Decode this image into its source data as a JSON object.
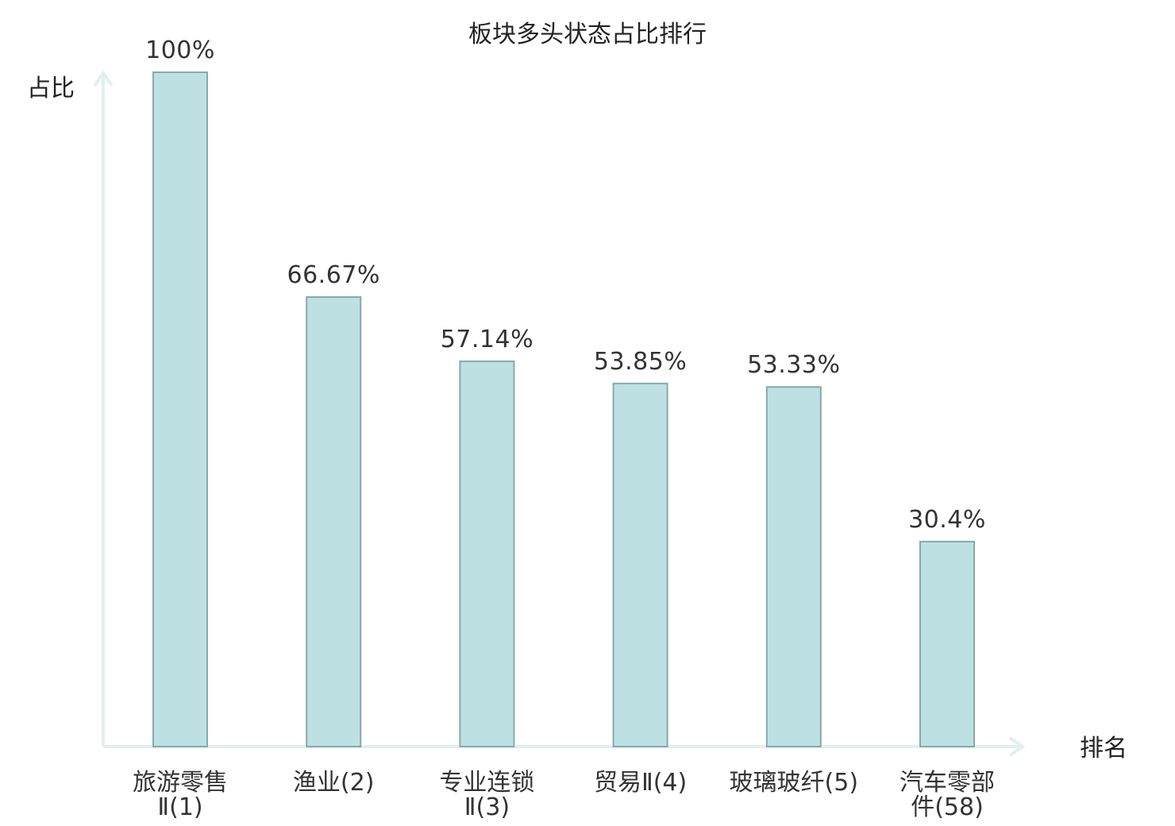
{
  "chart_data": {
    "type": "bar",
    "title": "板块多头状态占比排行",
    "xlabel": "排名",
    "ylabel": "占比",
    "ylim": [
      0,
      100
    ],
    "grid": false,
    "categories": [
      [
        "旅游零售",
        "Ⅱ(1)"
      ],
      [
        "渔业(2)"
      ],
      [
        "专业连锁",
        "Ⅱ(3)"
      ],
      [
        "贸易Ⅱ(4)"
      ],
      [
        "玻璃玻纤(5)"
      ],
      [
        "汽车零部",
        "件(58)"
      ]
    ],
    "values": [
      100,
      66.67,
      57.14,
      53.85,
      53.33,
      30.4
    ],
    "value_labels": [
      "100%",
      "66.67%",
      "57.14%",
      "53.85%",
      "53.33%",
      "30.4%"
    ],
    "highlight_index": 5,
    "colors": {
      "bar_fill": "#bde0e3",
      "bar_stroke": "#8aa9ab",
      "axis": "#dff0ee",
      "text": "#333333",
      "highlight_text": "#e0201c"
    }
  }
}
